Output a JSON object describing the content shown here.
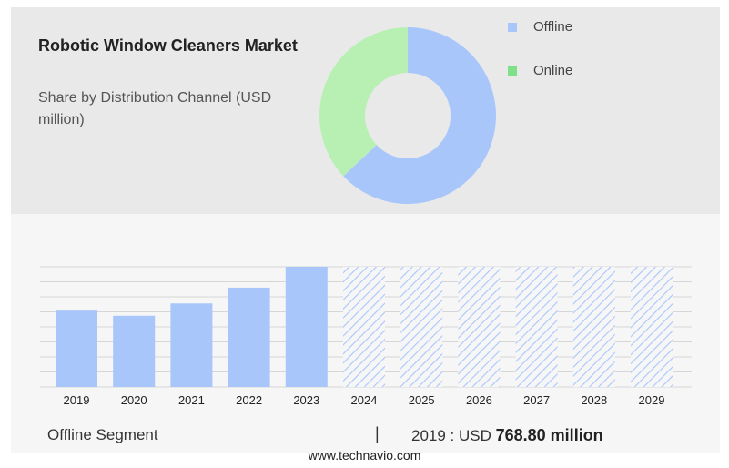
{
  "chart_data": [
    {
      "type": "pie",
      "title": "Robotic Window Cleaners Market",
      "subtitle": "Share by Distribution Channel (USD million)",
      "labels": [
        "Offline",
        "Online"
      ],
      "values": [
        63,
        37
      ],
      "colors": [
        "#a9c6fb",
        "#b8f0b4"
      ],
      "legend_colors": [
        "#a9c6fb",
        "#7fe08a"
      ],
      "donut": true,
      "legend": "right"
    },
    {
      "type": "bar",
      "categories": [
        "2019",
        "2020",
        "2021",
        "2022",
        "2023",
        "2024",
        "2025",
        "2026",
        "2027",
        "2028",
        "2029"
      ],
      "values": [
        768.8,
        717,
        841,
        1000,
        1210,
        null,
        null,
        null,
        null,
        null,
        null
      ],
      "forecast": [
        false,
        false,
        false,
        false,
        false,
        true,
        true,
        true,
        true,
        true,
        true
      ],
      "ylim": [
        0,
        1210
      ],
      "grid": true,
      "bar_color": "#a9c6fb",
      "hatch_color": "#a9c6fb"
    }
  ],
  "footer": {
    "segment_label": "Offline Segment",
    "separator": "|",
    "year_label": "2019 : USD",
    "value": "768.80 million",
    "site": "www.technavio.com"
  }
}
